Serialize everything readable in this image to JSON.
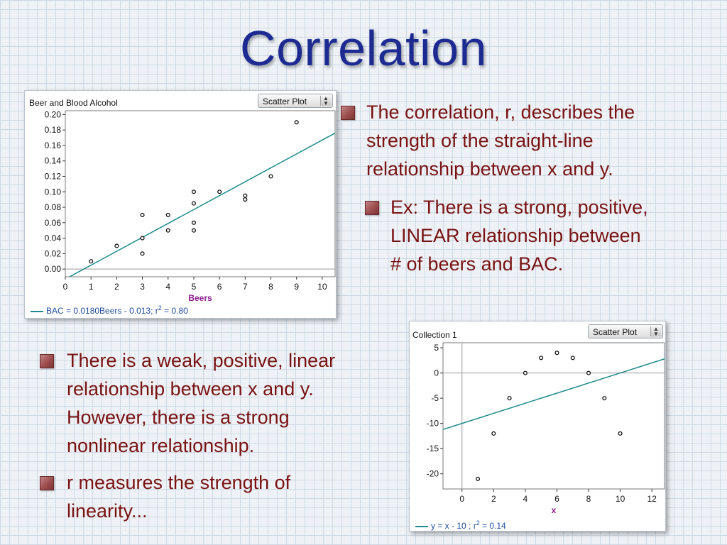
{
  "slide": {
    "title": "Correlation"
  },
  "bullets": {
    "b1": {
      "line1": "The correlation, r, describes the",
      "line2": "strength of the straight-line",
      "line3": "relationship between x and y."
    },
    "b2": {
      "line1": "Ex: There is a strong, positive,",
      "line2": "LINEAR relationship between",
      "line3": "# of beers and BAC."
    },
    "b3": {
      "line1": "There is a weak, positive, linear",
      "line2": "relationship between x and y.",
      "line3": "However, there is a strong",
      "line4": "nonlinear relationship."
    },
    "b4": {
      "line1": "r measures the strength of",
      "line2": "linearity..."
    }
  },
  "panel1": {
    "title": "Beer and Blood Alcohol",
    "select_value": "Scatter Plot",
    "equation": "BAC = 0.0180Beers - 0.013; r",
    "r2_sup": "2",
    "r2_value": " = 0.80"
  },
  "panel2": {
    "title": "Collection 1",
    "select_value": "Scatter Plot",
    "equation": "y = x - 10 ; r",
    "r2_sup": "2",
    "r2_value": " = 0.14"
  },
  "colors": {
    "title": "#1c2a92",
    "bullet_text": "#7a1212",
    "fit_line": "#1c8a8a",
    "equation": "#1f4f9e",
    "axis_label": "#8b1a8b"
  },
  "chart_data": [
    {
      "type": "scatter",
      "title": "Beer and Blood Alcohol",
      "xlabel": "Beers",
      "ylabel": "",
      "xlim": [
        0,
        10.5
      ],
      "ylim": [
        -0.01,
        0.205
      ],
      "xticks": [
        0,
        1,
        2,
        3,
        4,
        5,
        6,
        7,
        8,
        9,
        10
      ],
      "yticks": [
        0.0,
        0.02,
        0.04,
        0.06,
        0.08,
        0.1,
        0.12,
        0.14,
        0.16,
        0.18,
        0.2
      ],
      "ytick_labels": [
        "0.00",
        "0.02",
        "0.04",
        "0.06",
        "0.08",
        "0.10",
        "0.12",
        "0.14",
        "0.16",
        "0.18",
        "0.20"
      ],
      "points": [
        [
          1,
          0.01
        ],
        [
          2,
          0.03
        ],
        [
          3,
          0.02
        ],
        [
          3,
          0.04
        ],
        [
          3,
          0.07
        ],
        [
          4,
          0.05
        ],
        [
          4,
          0.07
        ],
        [
          5,
          0.05
        ],
        [
          5,
          0.06
        ],
        [
          5,
          0.085
        ],
        [
          5,
          0.1
        ],
        [
          6,
          0.1
        ],
        [
          7,
          0.09
        ],
        [
          7,
          0.095
        ],
        [
          8,
          0.12
        ],
        [
          9,
          0.19
        ]
      ],
      "fit": {
        "slope": 0.018,
        "intercept": -0.013
      },
      "r2": 0.8
    },
    {
      "type": "scatter",
      "title": "Collection 1",
      "xlabel": "x",
      "ylabel": "",
      "xlim": [
        -1.2,
        12.8
      ],
      "ylim": [
        -23,
        6
      ],
      "xticks": [
        0,
        2,
        4,
        6,
        8,
        10,
        12
      ],
      "yticks": [
        5,
        0,
        -5,
        -10,
        -15,
        -20
      ],
      "ytick_labels": [
        "5",
        "0",
        "-5",
        "-10",
        "-15",
        "-20"
      ],
      "points": [
        [
          1,
          -21
        ],
        [
          2,
          -12
        ],
        [
          3,
          -5
        ],
        [
          4,
          0
        ],
        [
          5,
          3
        ],
        [
          6,
          4
        ],
        [
          7,
          3
        ],
        [
          8,
          0
        ],
        [
          9,
          -5
        ],
        [
          10,
          -12
        ]
      ],
      "fit": {
        "slope": 1,
        "intercept": -10
      },
      "r2": 0.14
    }
  ]
}
